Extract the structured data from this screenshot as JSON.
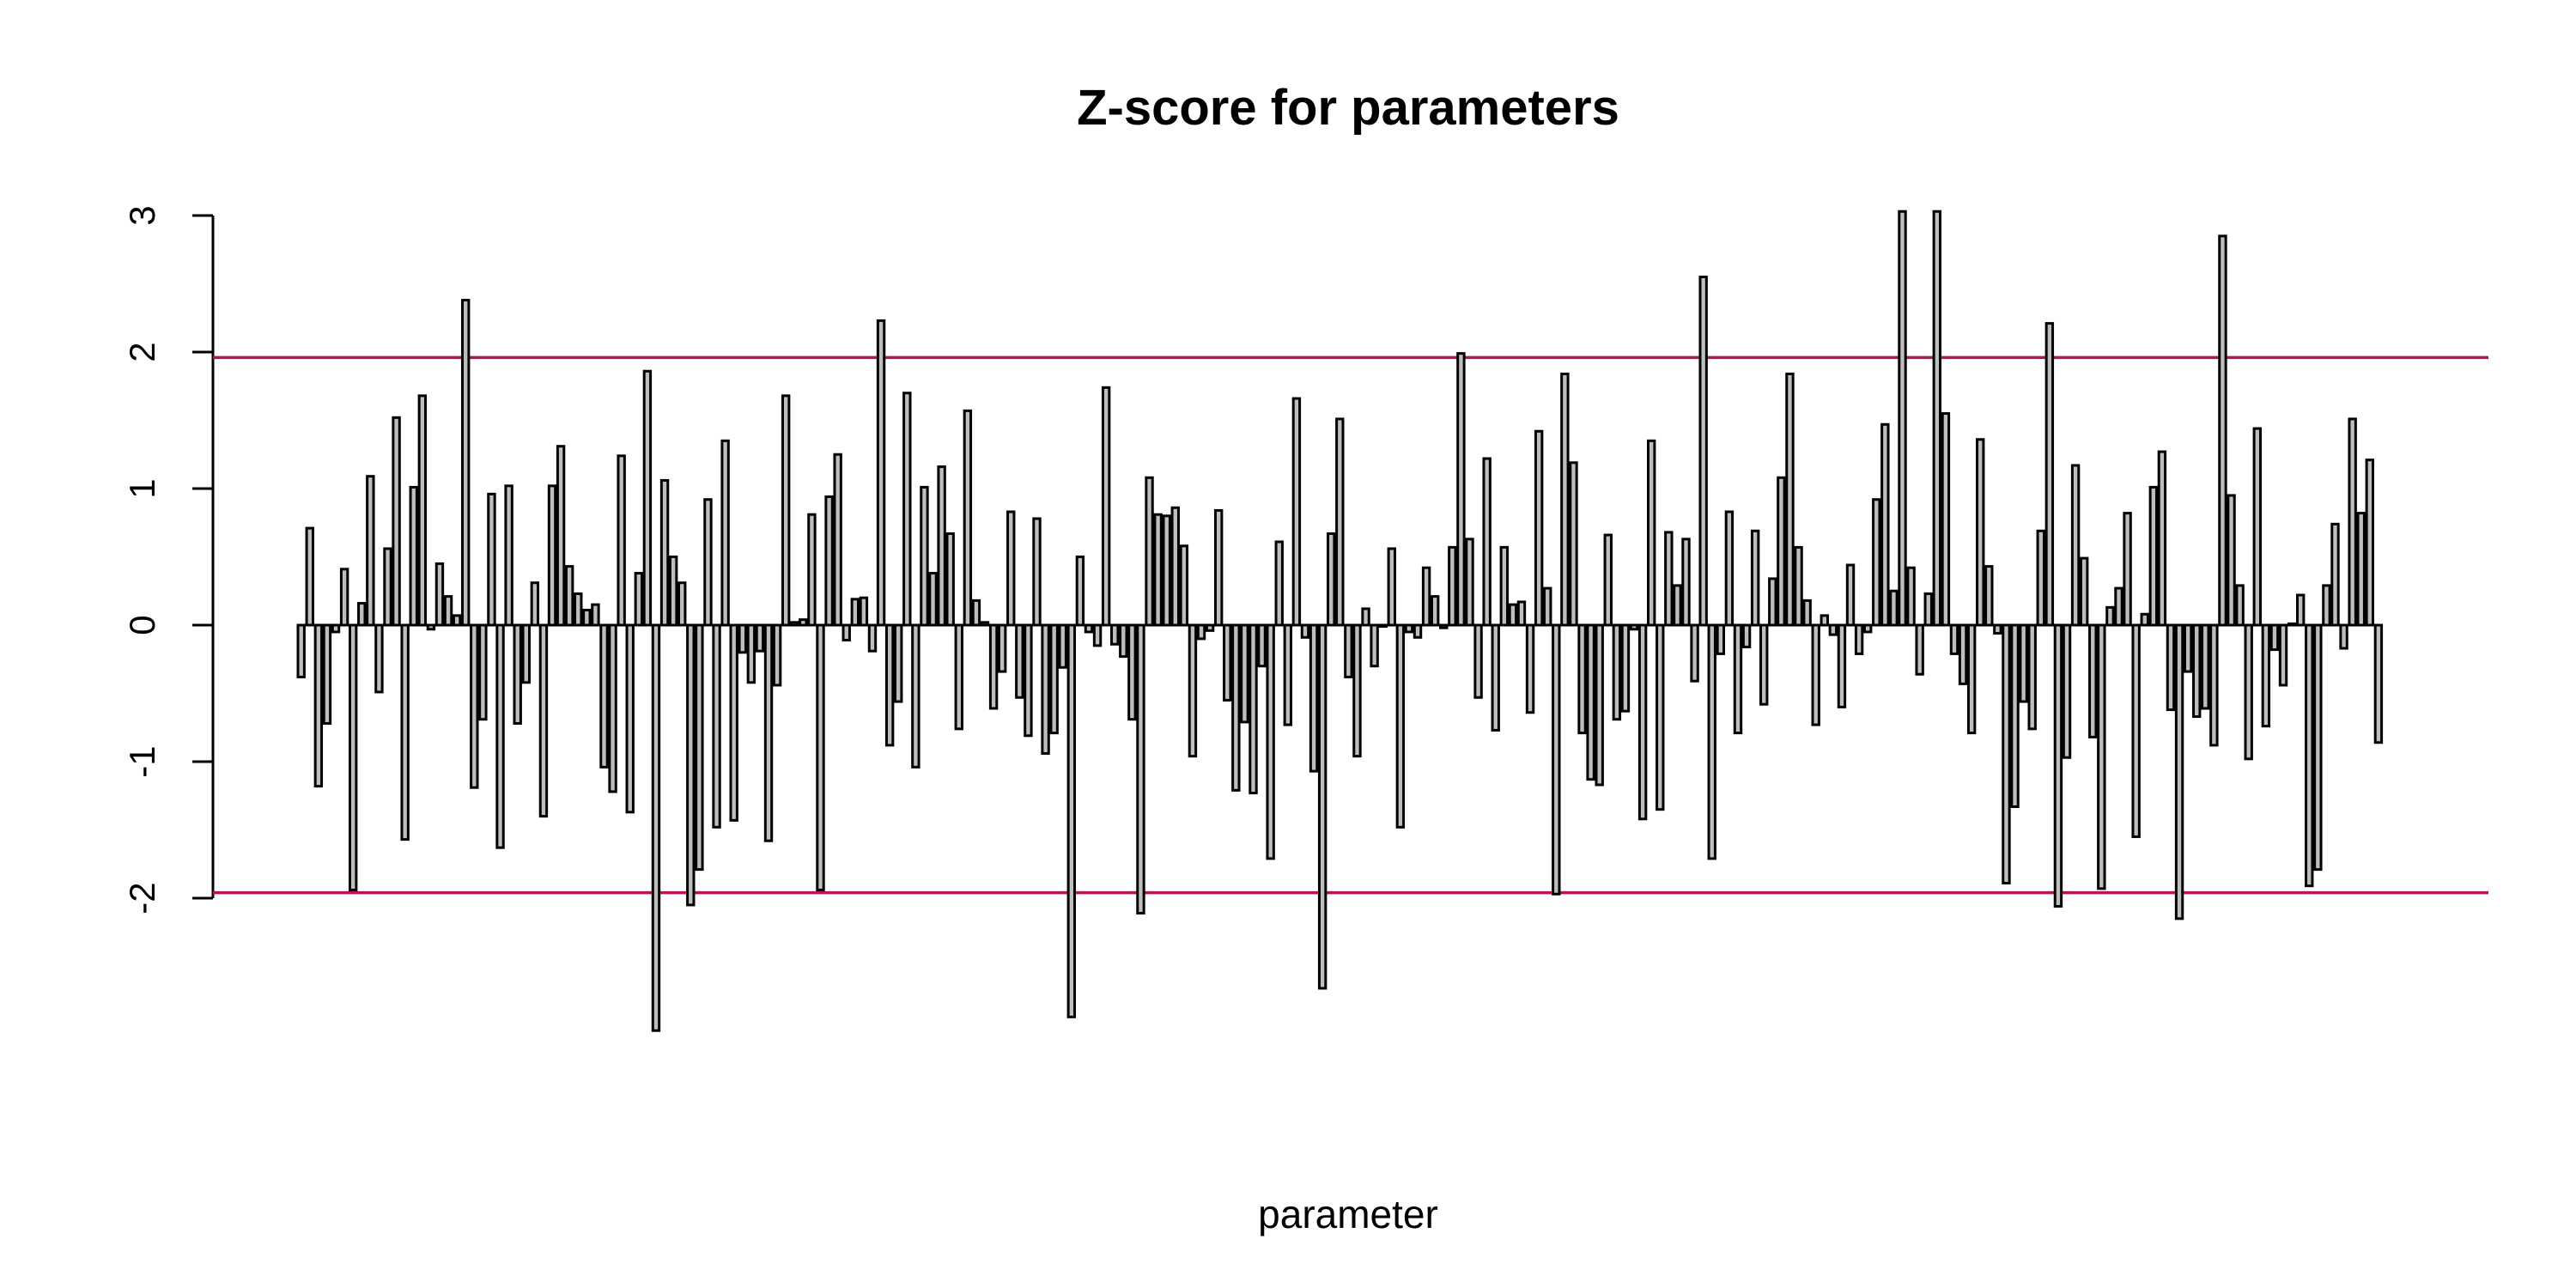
{
  "chart_data": {
    "type": "bar",
    "title": "Z-score for parameters",
    "xlabel": "parameter",
    "ylabel": "",
    "ylim": [
      -3,
      3
    ],
    "yticks": [
      -2,
      -1,
      0,
      1,
      2,
      3
    ],
    "grid": false,
    "legend": "none",
    "bar_color": "#bebebe",
    "bar_border_color": "#000000",
    "reference_lines": [
      {
        "y": 1.96,
        "color": "#b3175a"
      },
      {
        "y": -1.96,
        "color": "#b3175a"
      }
    ],
    "values": [
      -0.38,
      0.71,
      -1.18,
      -0.72,
      -0.05,
      0.41,
      -1.94,
      0.16,
      1.09,
      -0.49,
      0.56,
      1.52,
      -1.57,
      1.01,
      1.68,
      -0.03,
      0.45,
      0.21,
      0.07,
      2.38,
      -1.19,
      -0.69,
      0.96,
      -1.63,
      1.02,
      -0.72,
      -0.42,
      0.31,
      -1.4,
      1.02,
      1.31,
      0.43,
      0.23,
      0.11,
      0.15,
      -1.04,
      -1.22,
      1.24,
      -1.37,
      0.38,
      1.86,
      -2.97,
      1.06,
      0.5,
      0.31,
      -2.05,
      -1.79,
      0.92,
      -1.48,
      1.35,
      -1.43,
      -0.2,
      -0.42,
      -0.19,
      -1.58,
      -0.44,
      1.68,
      0.02,
      0.04,
      0.81,
      -1.94,
      0.94,
      1.25,
      -0.11,
      0.19,
      0.2,
      -0.19,
      2.23,
      -0.88,
      -0.56,
      1.7,
      -1.04,
      1.01,
      0.38,
      1.16,
      0.67,
      -0.76,
      1.57,
      0.18,
      0.02,
      -0.61,
      -0.34,
      0.83,
      -0.53,
      -0.81,
      0.78,
      -0.94,
      -0.79,
      -0.31,
      -2.87,
      0.5,
      -0.05,
      -0.15,
      1.74,
      -0.14,
      -0.23,
      -0.69,
      -2.11,
      1.08,
      0.81,
      0.8,
      0.86,
      0.58,
      -0.96,
      -0.1,
      -0.04,
      0.84,
      -0.55,
      -1.21,
      -0.71,
      -1.23,
      -0.3,
      -1.71,
      0.61,
      -0.73,
      1.66,
      -0.09,
      -1.07,
      -2.66,
      0.67,
      1.51,
      -0.38,
      -0.96,
      0.12,
      -0.3,
      -0.01,
      0.56,
      -1.48,
      -0.05,
      -0.09,
      0.42,
      0.21,
      -0.02,
      0.57,
      1.99,
      0.63,
      -0.53,
      1.22,
      -0.77,
      0.57,
      0.15,
      0.17,
      -0.64,
      1.42,
      0.27,
      -1.97,
      1.84,
      1.19,
      -0.79,
      -1.13,
      -1.17,
      0.66,
      -0.69,
      -0.63,
      -0.03,
      -1.42,
      1.35,
      -1.35,
      0.68,
      0.29,
      0.63,
      -0.41,
      2.55,
      -1.71,
      -0.21,
      0.83,
      -0.79,
      -0.16,
      0.69,
      -0.58,
      0.34,
      1.08,
      1.84,
      0.57,
      0.18,
      -0.73,
      0.07,
      -0.07,
      -0.6,
      0.44,
      -0.21,
      -0.05,
      0.92,
      1.47,
      0.25,
      3.03,
      0.42,
      -0.36,
      0.23,
      3.03,
      1.55,
      -0.21,
      -0.43,
      -0.79,
      1.36,
      0.43,
      -0.06,
      -1.89,
      -1.33,
      -0.56,
      -0.76,
      0.69,
      2.21,
      -2.06,
      -0.97,
      1.17,
      0.49,
      -0.82,
      -1.93,
      0.13,
      0.27,
      0.82,
      -1.55,
      0.08,
      1.01,
      1.27,
      -0.62,
      -2.15,
      -0.34,
      -0.67,
      -0.61,
      -0.88,
      2.85,
      0.95,
      0.29,
      -0.98,
      1.44,
      -0.74,
      -0.18,
      -0.44,
      0.01,
      0.22,
      -1.91,
      -1.79,
      0.29,
      0.74,
      -0.17,
      1.51,
      0.82,
      1.21,
      -0.86
    ]
  }
}
